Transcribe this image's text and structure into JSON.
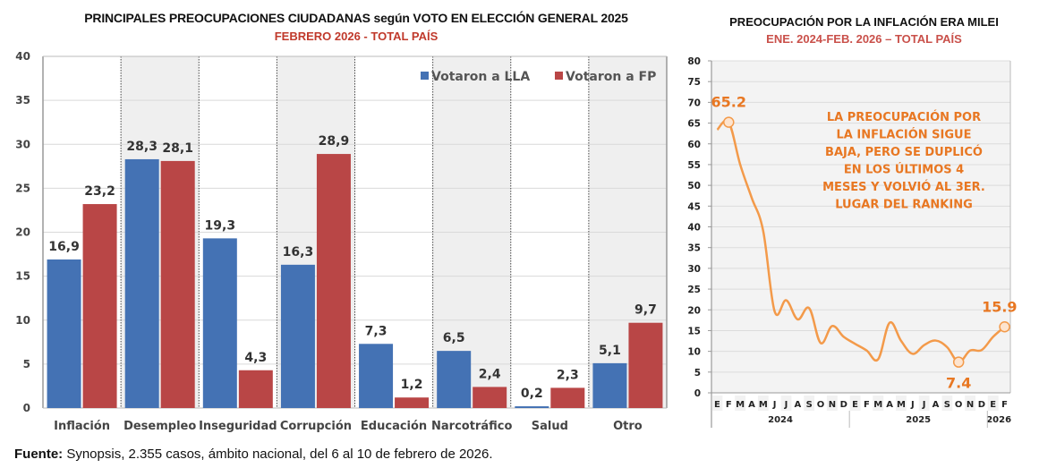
{
  "chart_data": [
    {
      "type": "bar",
      "title": "PRINCIPALES PREOCUPACIONES CIUDADANAS según VOTO EN ELECCIÓN GENERAL 2025",
      "subtitle": "FEBRERO 2026 - TOTAL PAÍS",
      "xlabel": "",
      "ylabel": "",
      "ylim": [
        0,
        40
      ],
      "yticks": [
        0,
        5,
        10,
        15,
        20,
        25,
        30,
        35,
        40
      ],
      "grid": true,
      "legend_position": "top-right",
      "categories": [
        "Inflación",
        "Desempleo",
        "Inseguridad",
        "Corrupción",
        "Educación",
        "Narcotráfico",
        "Salud",
        "Otro"
      ],
      "series": [
        {
          "name": "Votaron a LLA",
          "color": "#4472b4",
          "values": [
            16.9,
            28.3,
            19.3,
            16.3,
            7.3,
            6.5,
            0.2,
            5.1
          ],
          "labels": [
            "16,9",
            "28,3",
            "19,3",
            "16,3",
            "7,3",
            "6,5",
            "0,2",
            "5,1"
          ]
        },
        {
          "name": "Votaron a FP",
          "color": "#b94646",
          "values": [
            23.2,
            28.1,
            4.3,
            28.9,
            1.2,
            2.4,
            2.3,
            9.7
          ],
          "labels": [
            "23,2",
            "28,1",
            "4,3",
            "28,9",
            "1,2",
            "2,4",
            "2,3",
            "9,7"
          ]
        }
      ]
    },
    {
      "type": "line",
      "title": "PREOCUPACIÓN POR LA INFLACIÓN ERA MILEI",
      "subtitle": "ENE. 2024-FEB. 2026 – TOTAL PAÍS",
      "xlabel": "",
      "ylabel": "",
      "ylim": [
        0,
        80
      ],
      "yticks": [
        0,
        5,
        10,
        15,
        20,
        25,
        30,
        35,
        40,
        45,
        50,
        55,
        60,
        65,
        70,
        75,
        80
      ],
      "grid": true,
      "x_months": [
        "E",
        "F",
        "M",
        "A",
        "M",
        "J",
        "J",
        "A",
        "S",
        "O",
        "N",
        "D",
        "E",
        "F",
        "M",
        "A",
        "M",
        "J",
        "J",
        "A",
        "S",
        "O",
        "N",
        "D",
        "E",
        "F"
      ],
      "x_years": [
        {
          "label": "2024",
          "start": 0,
          "end": 11
        },
        {
          "label": "2025",
          "start": 12,
          "end": 23
        },
        {
          "label": "2026",
          "start": 24,
          "end": 25
        }
      ],
      "series": [
        {
          "name": "Preocupación por la inflación",
          "color": "#f39a4a",
          "values": [
            63.4,
            65.2,
            55,
            47,
            39,
            19.6,
            22.3,
            17.7,
            20.4,
            12.0,
            16.1,
            13.5,
            11.8,
            10.2,
            8.1,
            16.9,
            12.5,
            9.4,
            11.5,
            12.6,
            11.0,
            7.4,
            10.2,
            10.3,
            13.5,
            15.9
          ]
        }
      ],
      "annotations": [
        {
          "index": 1,
          "label": "65.2"
        },
        {
          "index": 21,
          "label": "7.4"
        },
        {
          "index": 25,
          "label": "15.9"
        }
      ],
      "note_lines": [
        "LA PREOCUPACIÓN POR",
        "LA INFLACIÓN SIGUE",
        "BAJA, PERO SE DUPLICÓ",
        "EN LOS ÚLTIMOS 4",
        "MESES Y VOLVIÓ AL 3ER.",
        "LUGAR DEL RANKING"
      ],
      "note_color": "#e87722"
    }
  ],
  "footer": {
    "label": "Fuente:",
    "text": " Synopsis, 2.355 casos, ámbito nacional, del 6 al 10 de febrero de 2026."
  }
}
